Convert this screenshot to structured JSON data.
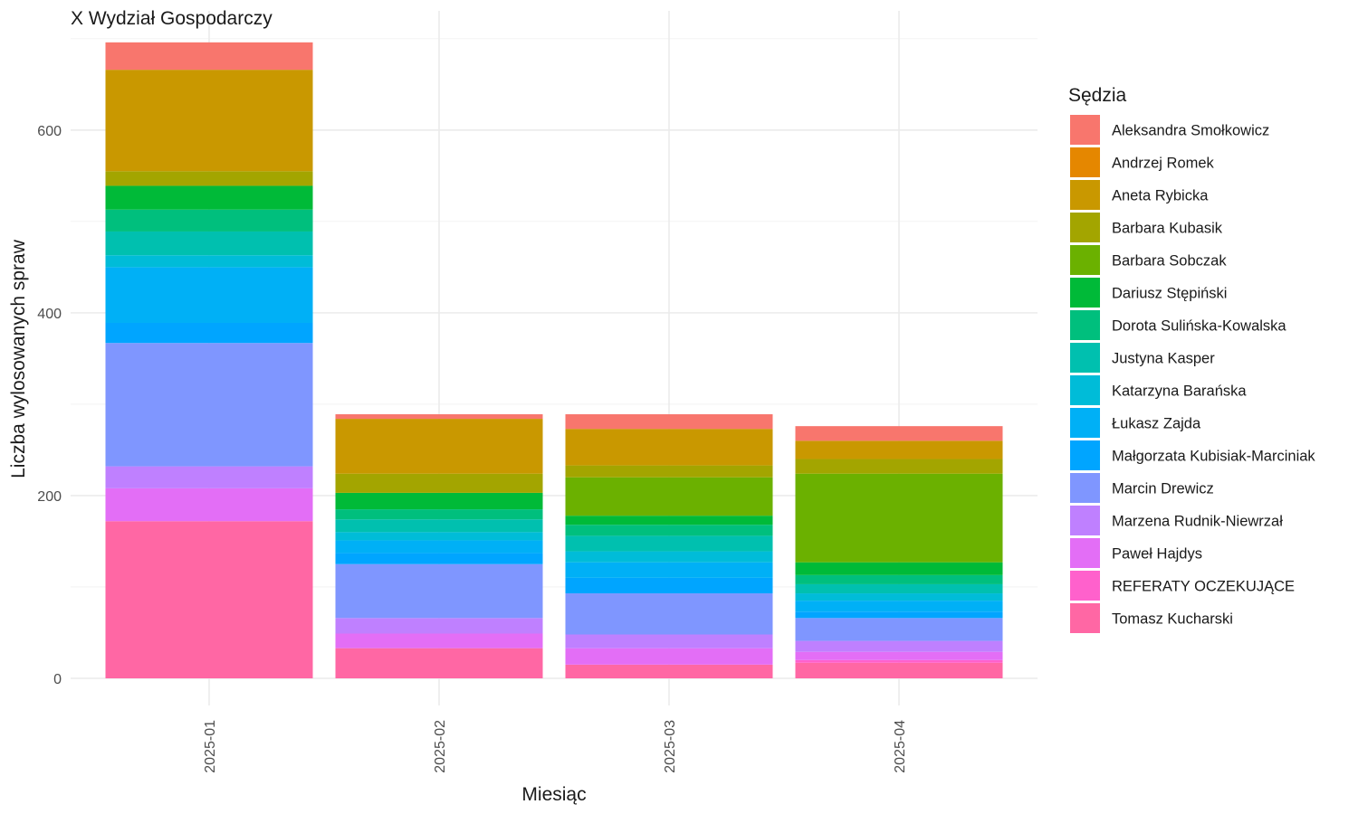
{
  "chart_data": {
    "type": "bar",
    "stacked": true,
    "title": "X Wydział Gospodarczy",
    "xlabel": "Miesiąc",
    "ylabel": "Liczba wylosowanych spraw",
    "ylim": [
      0,
      700
    ],
    "yticks": [
      0,
      200,
      400,
      600
    ],
    "grid": true,
    "legend": {
      "title": "Sędzia",
      "position": "right"
    },
    "categories": [
      "2025-01",
      "2025-02",
      "2025-03",
      "2025-04"
    ],
    "series": [
      {
        "name": "Aleksandra Smołkowicz",
        "color": "#F8766D",
        "values": [
          30,
          5,
          16,
          16
        ]
      },
      {
        "name": "Andrzej Romek",
        "color": "#E58700",
        "values": [
          0,
          0,
          0,
          0
        ]
      },
      {
        "name": "Aneta Rybicka",
        "color": "#C99800",
        "values": [
          111,
          60,
          40,
          20
        ]
      },
      {
        "name": "Barbara Kubasik",
        "color": "#A3A500",
        "values": [
          16,
          21,
          13,
          16
        ]
      },
      {
        "name": "Barbara Sobczak",
        "color": "#6BB100",
        "values": [
          0,
          0,
          42,
          97
        ]
      },
      {
        "name": "Dariusz Stępiński",
        "color": "#00BA38",
        "values": [
          26,
          18,
          10,
          14
        ]
      },
      {
        "name": "Dorota Sulińska-Kowalska",
        "color": "#00BF7D",
        "values": [
          24,
          11,
          12,
          10
        ]
      },
      {
        "name": "Justyna Kasper",
        "color": "#00C0AF",
        "values": [
          26,
          14,
          17,
          10
        ]
      },
      {
        "name": "Katarzyna Barańska",
        "color": "#00BCD8",
        "values": [
          13,
          9,
          12,
          8
        ]
      },
      {
        "name": "Łukasz Zajda",
        "color": "#00B0F6",
        "values": [
          61,
          14,
          17,
          12
        ]
      },
      {
        "name": "Małgorzata Kubisiak-Marciniak",
        "color": "#00A5FF",
        "values": [
          22,
          12,
          17,
          7
        ]
      },
      {
        "name": "Marcin Drewicz",
        "color": "#7F96FF",
        "values": [
          135,
          59,
          45,
          25
        ]
      },
      {
        "name": "Marzena Rudnik-Niewrzał",
        "color": "#BF80FF",
        "values": [
          24,
          17,
          15,
          12
        ]
      },
      {
        "name": "Paweł Hajdys",
        "color": "#E36EF6",
        "values": [
          36,
          16,
          18,
          9
        ]
      },
      {
        "name": "REFERATY OCZEKUJĄCE",
        "color": "#FF61CC",
        "values": [
          0,
          0,
          0,
          3
        ]
      },
      {
        "name": "Tomasz Kucharski",
        "color": "#FF67A4",
        "values": [
          172,
          33,
          15,
          17
        ]
      }
    ]
  }
}
